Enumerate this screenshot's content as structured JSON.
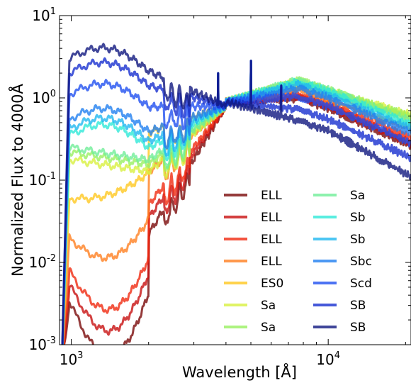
{
  "chart_data": {
    "type": "line",
    "xlabel": "Wavelength [Å]",
    "ylabel": "Normalized Flux to 4000Å",
    "x_scale": "log",
    "y_scale": "log",
    "xlim": [
      900,
      21000
    ],
    "ylim": [
      0.001,
      10
    ],
    "x_ticks": [
      {
        "value": 1000,
        "base": "10",
        "exp": "3"
      },
      {
        "value": 10000,
        "base": "10",
        "exp": "4"
      }
    ],
    "y_ticks": [
      {
        "value": 10,
        "base": "10",
        "exp": "1"
      },
      {
        "value": 1,
        "base": "10",
        "exp": "0"
      },
      {
        "value": 0.1,
        "base": "10",
        "exp": "-1"
      },
      {
        "value": 0.01,
        "base": "10",
        "exp": "-2"
      },
      {
        "value": 0.001,
        "base": "10",
        "exp": "-3"
      }
    ],
    "grid": false,
    "legend_position": "lower-right",
    "series": [
      {
        "name": "ELL",
        "color": "#7a0a0a",
        "flux_at_1000A": 0.0035,
        "flux_at_10000A": 0.75,
        "flux_at_20000A": 0.28
      },
      {
        "name": "ELL",
        "color": "#c81010",
        "flux_at_1000A": 0.0055,
        "flux_at_10000A": 0.8,
        "flux_at_20000A": 0.3
      },
      {
        "name": "ELL",
        "color": "#f02a10",
        "flux_at_1000A": 0.008,
        "flux_at_10000A": 0.85,
        "flux_at_20000A": 0.35
      },
      {
        "name": "ELL",
        "color": "#ff8020",
        "flux_at_1000A": 0.02,
        "flux_at_10000A": 0.95,
        "flux_at_20000A": 0.45
      },
      {
        "name": "ES0",
        "color": "#ffc820",
        "flux_at_1000A": 0.06,
        "flux_at_10000A": 1.1,
        "flux_at_20000A": 0.6
      },
      {
        "name": "Sa",
        "color": "#d8f040",
        "flux_at_1000A": 0.18,
        "flux_at_10000A": 1.2,
        "flux_at_20000A": 0.65
      },
      {
        "name": "Sa",
        "color": "#98f060",
        "flux_at_1000A": 0.22,
        "flux_at_10000A": 1.25,
        "flux_at_20000A": 0.62
      },
      {
        "name": "Sa",
        "color": "#70ee98",
        "flux_at_1000A": 0.25,
        "flux_at_10000A": 1.25,
        "flux_at_20000A": 0.55
      },
      {
        "name": "Sb",
        "color": "#30e8d8",
        "flux_at_1000A": 0.35,
        "flux_at_10000A": 1.2,
        "flux_at_20000A": 0.5
      },
      {
        "name": "Sb",
        "color": "#20b8f0",
        "flux_at_1000A": 0.42,
        "flux_at_10000A": 1.1,
        "flux_at_20000A": 0.45
      },
      {
        "name": "Sbc",
        "color": "#2080f0",
        "flux_at_1000A": 0.55,
        "flux_at_10000A": 1.0,
        "flux_at_20000A": 0.4
      },
      {
        "name": "Scd",
        "color": "#2050f0",
        "flux_at_1000A": 1.1,
        "flux_at_10000A": 0.8,
        "flux_at_20000A": 0.3
      },
      {
        "name": "SB",
        "color": "#1830d0",
        "flux_at_1000A": 2.0,
        "flux_at_10000A": 0.55,
        "flux_at_20000A": 0.2
      },
      {
        "name": "SB",
        "color": "#101880",
        "flux_at_1000A": 3.0,
        "flux_at_10000A": 0.4,
        "flux_at_20000A": 0.12
      }
    ]
  }
}
